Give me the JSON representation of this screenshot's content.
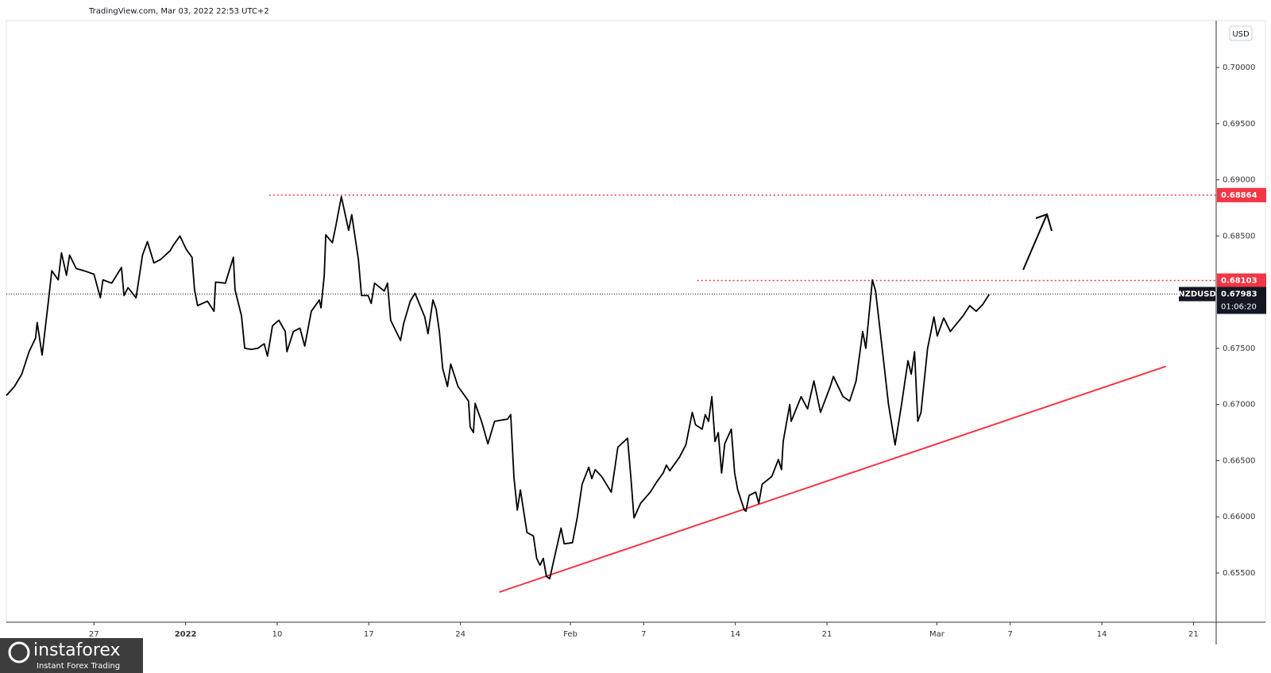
{
  "chart_data": {
    "type": "line",
    "source": "TradingView.com, Mar 03, 2022 22:53 UTC+2",
    "currency": "USD",
    "symbol": "NZDUSD",
    "color": "#000000",
    "x": [
      -4.78,
      -4.34,
      -3.94,
      -3.54,
      -3.19,
      -3.1,
      -2.83,
      -2.48,
      -2.3,
      -1.95,
      -1.77,
      -1.5,
      -1.33,
      -0.97,
      -0.53,
      0,
      0.35,
      0.49,
      0.97,
      1.5,
      1.64,
      1.86,
      2.3,
      2.65,
      2.92,
      3.27,
      3.63,
      4.16,
      4.34,
      4.69,
      5.04,
      5.35,
      5.49,
      5.66,
      6.19,
      6.55,
      6.64,
      7.17,
      7.61,
      7.7,
      8.05,
      8.23,
      8.58,
      8.94,
      9.29,
      9.47,
      9.74,
      10.09,
      10.44,
      10.53,
      10.88,
      11.24,
      11.5,
      11.86,
      12.3,
      12.39,
      12.57,
      12.65,
      13.01,
      13.19,
      13.5,
      13.9,
      14.07,
      14.43,
      14.6,
      14.96,
      15.13,
      15.31,
      15.84,
      16.02,
      16.19,
      16.73,
      16.9,
      17.26,
      17.52,
      18.05,
      18.23,
      18.5,
      18.67,
      18.85,
      19.03,
      19.29,
      19.47,
      19.87,
      20.27,
      20.44,
      20.53,
      20.71,
      20.8,
      21.15,
      21.5,
      21.86,
      22.57,
      22.74,
      22.92,
      23.1,
      23.27,
      23.63,
      23.98,
      24.16,
      24.34,
      24.52,
      24.69,
      24.87,
      25.13,
      25.49,
      25.66,
      26.11,
      26.37,
      26.64,
      27.0,
      27.17,
      27.35,
      27.7,
      28.23,
      28.41,
      28.59,
      29.12,
      29.3,
      29.47,
      29.83,
      30.36,
      30.71,
      31.06,
      31.24,
      31.42,
      31.95,
      32.3,
      32.65,
      32.83,
      33.19,
      33.36,
      33.54,
      33.72,
      33.89,
      34.07,
      34.25,
      34.42,
      34.78,
      34.96,
      35.13,
      35.49,
      35.58,
      35.75,
      36.11,
      36.28,
      36.46,
      36.99,
      37.35,
      37.52,
      37.61,
      37.97,
      38.05,
      38.59,
      38.94,
      39.29,
      39.65,
      40.18,
      40.35,
      40.88,
      41.24,
      41.59,
      41.95,
      42.12,
      42.48,
      42.65,
      43.01,
      43.36,
      43.72,
      44.07,
      44.42,
      44.6,
      44.78,
      44.96,
      45.13,
      45.49,
      45.84,
      46.02,
      46.37,
      46.73,
      47.08,
      47.43,
      47.79,
      48.14,
      48.5,
      48.85
    ],
    "values": [
      0.6708,
      0.6716,
      0.6727,
      0.6747,
      0.6759,
      0.6773,
      0.6744,
      0.6793,
      0.6819,
      0.6811,
      0.6835,
      0.6815,
      0.6833,
      0.6821,
      0.6819,
      0.6816,
      0.6795,
      0.6811,
      0.6808,
      0.6822,
      0.6797,
      0.6804,
      0.6795,
      0.6833,
      0.6845,
      0.6826,
      0.6829,
      0.6837,
      0.6842,
      0.685,
      0.6838,
      0.6831,
      0.6802,
      0.6788,
      0.6792,
      0.6783,
      0.6809,
      0.6808,
      0.6831,
      0.6802,
      0.6779,
      0.675,
      0.6749,
      0.675,
      0.6754,
      0.6743,
      0.677,
      0.6775,
      0.6765,
      0.6747,
      0.6765,
      0.6768,
      0.6752,
      0.6783,
      0.6793,
      0.6786,
      0.6815,
      0.6851,
      0.6844,
      0.6858,
      0.6885,
      0.6855,
      0.6869,
      0.6829,
      0.6797,
      0.6797,
      0.679,
      0.6808,
      0.6801,
      0.6808,
      0.6775,
      0.6757,
      0.6772,
      0.6792,
      0.6799,
      0.6778,
      0.6763,
      0.6793,
      0.6785,
      0.6765,
      0.6732,
      0.6716,
      0.6736,
      0.6716,
      0.6707,
      0.6703,
      0.668,
      0.6675,
      0.6701,
      0.6685,
      0.6665,
      0.6685,
      0.6687,
      0.6691,
      0.6635,
      0.6606,
      0.6624,
      0.6586,
      0.6583,
      0.6563,
      0.6557,
      0.6563,
      0.6547,
      0.6545,
      0.6564,
      0.659,
      0.6576,
      0.6577,
      0.6599,
      0.6629,
      0.6644,
      0.6634,
      0.6642,
      0.6636,
      0.6622,
      0.6642,
      0.6662,
      0.667,
      0.6635,
      0.6599,
      0.6612,
      0.6622,
      0.6631,
      0.6639,
      0.6646,
      0.6641,
      0.6653,
      0.6664,
      0.6693,
      0.6682,
      0.6678,
      0.6691,
      0.6685,
      0.6707,
      0.6667,
      0.6675,
      0.6639,
      0.6665,
      0.6678,
      0.6639,
      0.6624,
      0.6606,
      0.6605,
      0.6619,
      0.6622,
      0.6612,
      0.6629,
      0.6636,
      0.6651,
      0.6642,
      0.6667,
      0.67,
      0.6685,
      0.6707,
      0.6696,
      0.6721,
      0.6693,
      0.6716,
      0.6725,
      0.6707,
      0.6703,
      0.6721,
      0.6765,
      0.675,
      0.6811,
      0.6801,
      0.675,
      0.67,
      0.6664,
      0.67,
      0.6739,
      0.6727,
      0.6747,
      0.6685,
      0.6693,
      0.675,
      0.6778,
      0.6761,
      0.6777,
      0.6765,
      0.6772,
      0.6779,
      0.6788,
      0.6783,
      0.6789,
      0.6798
    ],
    "xlim": [
      -4.78,
      61.24
    ],
    "xticks": [
      {
        "value": 0,
        "label": "27"
      },
      {
        "value": 5,
        "label": "2022"
      },
      {
        "value": 10,
        "label": "10"
      },
      {
        "value": 15,
        "label": "17"
      },
      {
        "value": 20,
        "label": "24"
      },
      {
        "value": 26,
        "label": "Feb"
      },
      {
        "value": 30,
        "label": "7"
      },
      {
        "value": 35,
        "label": "14"
      },
      {
        "value": 40,
        "label": "21"
      },
      {
        "value": 46,
        "label": "Mar"
      },
      {
        "value": 50,
        "label": "7"
      },
      {
        "value": 55,
        "label": "14"
      },
      {
        "value": 60,
        "label": "21"
      }
    ],
    "ylim": [
      0.65062,
      0.70417
    ],
    "yticks": [
      {
        "value": 0.655,
        "label": "0.65500"
      },
      {
        "value": 0.66,
        "label": "0.66000"
      },
      {
        "value": 0.665,
        "label": "0.66500"
      },
      {
        "value": 0.67,
        "label": "0.67000"
      },
      {
        "value": 0.675,
        "label": "0.67500"
      },
      {
        "value": 0.68,
        "label": "0.68000"
      },
      {
        "value": 0.685,
        "label": "0.68500"
      },
      {
        "value": 0.69,
        "label": "0.69000"
      },
      {
        "value": 0.695,
        "label": "0.69500"
      },
      {
        "value": 0.7,
        "label": "0.70000"
      }
    ],
    "levels": [
      {
        "value": 0.68864,
        "from": 9.56,
        "color": "#f23645"
      },
      {
        "value": 0.68103,
        "from": 32.92,
        "color": "#f23645"
      }
    ],
    "last_price": 0.67983,
    "countdown": "01:06:20",
    "trendline": {
      "x": [
        22.12,
        58.5
      ],
      "y": [
        0.6533,
        0.6734
      ],
      "color": "#f23645"
    },
    "watermark": {
      "name": "instaforex",
      "tagline": "Instant Forex Trading"
    }
  }
}
